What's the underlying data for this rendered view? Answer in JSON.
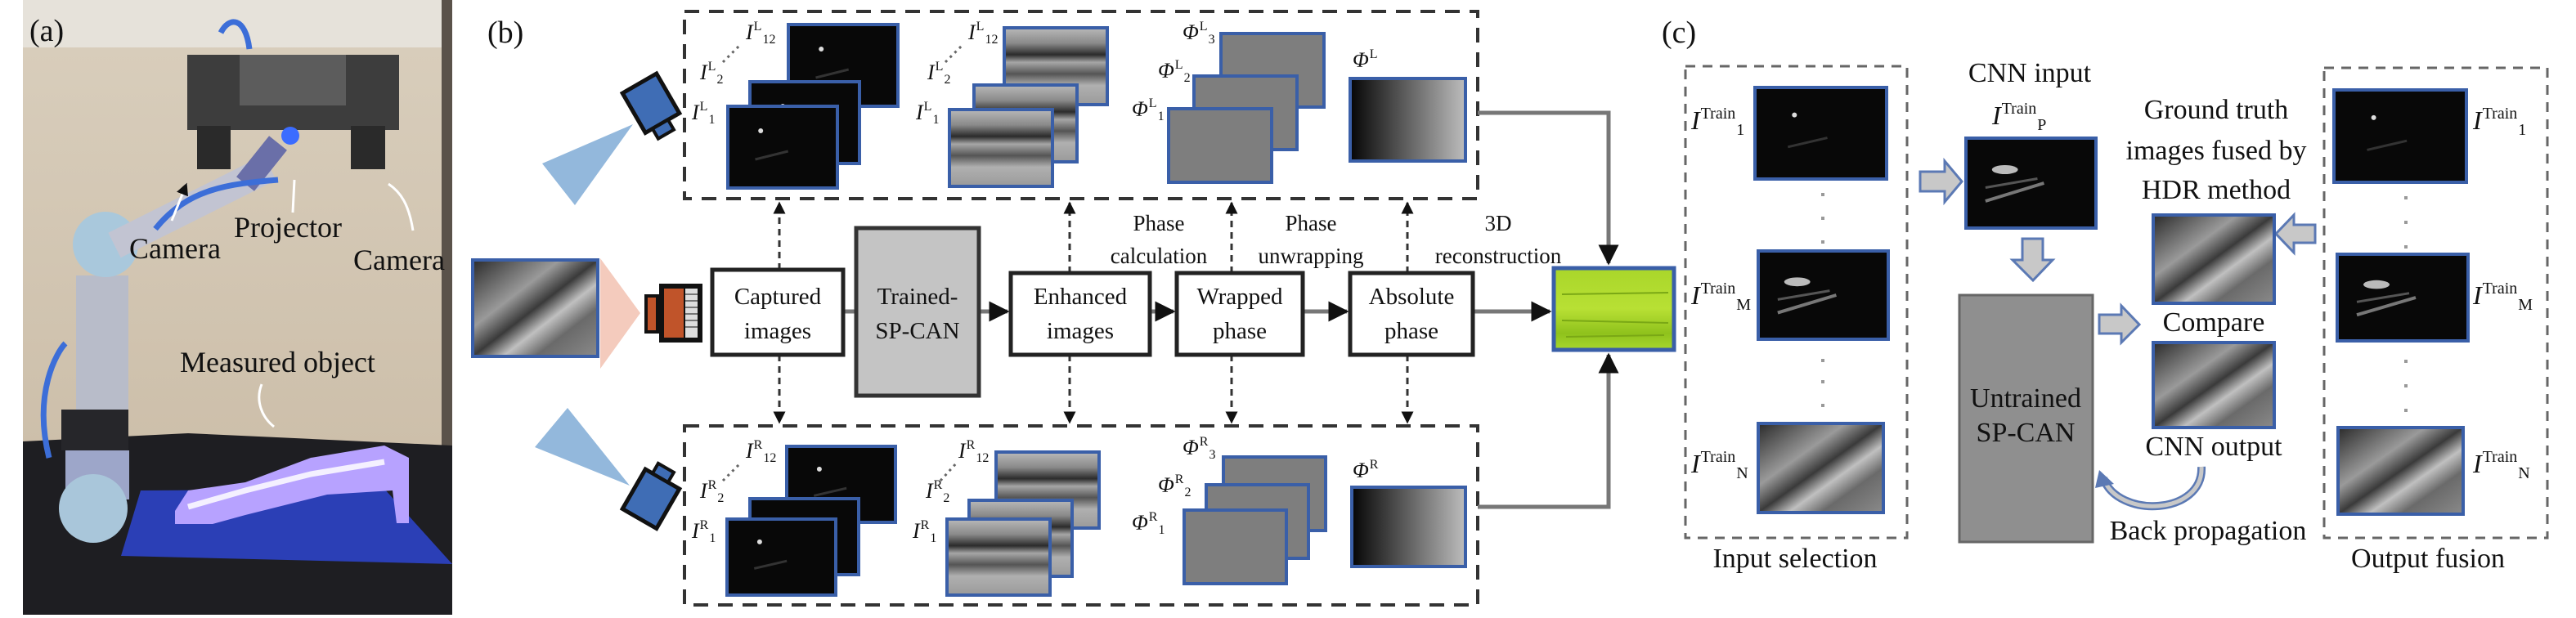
{
  "panel_a": {
    "label": "(a)",
    "annotations": {
      "camera_left": "Camera",
      "projector": "Projector",
      "camera_right": "Camera",
      "measured_object": "Measured object"
    }
  },
  "panel_b": {
    "label": "(b)",
    "blocks": {
      "captured": [
        "Captured",
        "images"
      ],
      "trained": [
        "Trained-",
        "SP-CAN"
      ],
      "enhanced": [
        "Enhanced",
        "images"
      ],
      "wrapped": [
        "Wrapped",
        "phase"
      ],
      "absolute": [
        "Absolute",
        "phase"
      ]
    },
    "steps": {
      "phase_calculation": [
        "Phase",
        "calculation"
      ],
      "phase_unwrapping": [
        "Phase",
        "unwrapping"
      ],
      "reconstruction": [
        "3D",
        "reconstruction"
      ]
    },
    "left_camera": {
      "captured": [
        {
          "base": "I",
          "sub": "12",
          "sup": "L"
        },
        {
          "base": "I",
          "sub": "2",
          "sup": "L"
        },
        {
          "base": "I",
          "sub": "1",
          "sup": "L"
        }
      ],
      "enhanced": [
        {
          "base": "I",
          "sub": "12",
          "sup": "L"
        },
        {
          "base": "I",
          "sub": "2",
          "sup": "L"
        },
        {
          "base": "I",
          "sub": "1",
          "sup": "L"
        }
      ],
      "wrapped": [
        {
          "base": "Φ",
          "sub": "3",
          "sup": "L"
        },
        {
          "base": "Φ",
          "sub": "2",
          "sup": "L"
        },
        {
          "base": "Φ",
          "sub": "1",
          "sup": "L"
        }
      ],
      "absolute": {
        "base": "Φ",
        "sub": "",
        "sup": "L"
      }
    },
    "right_camera": {
      "captured": [
        {
          "base": "I",
          "sub": "12",
          "sup": "R"
        },
        {
          "base": "I",
          "sub": "2",
          "sup": "R"
        },
        {
          "base": "I",
          "sub": "1",
          "sup": "R"
        }
      ],
      "enhanced": [
        {
          "base": "I",
          "sub": "12",
          "sup": "R"
        },
        {
          "base": "I",
          "sub": "2",
          "sup": "R"
        },
        {
          "base": "I",
          "sub": "1",
          "sup": "R"
        }
      ],
      "wrapped": [
        {
          "base": "Φ",
          "sub": "3",
          "sup": "R"
        },
        {
          "base": "Φ",
          "sub": "2",
          "sup": "R"
        },
        {
          "base": "Φ",
          "sub": "1",
          "sup": "R"
        }
      ],
      "absolute": {
        "base": "Φ",
        "sub": "",
        "sup": "R"
      }
    },
    "colors": {
      "camera": "#3f6db5",
      "projector": "#c0542a",
      "frame": "#3a5fa8",
      "result": "#9bd321",
      "spcan": "#c4c4c4"
    }
  },
  "panel_c": {
    "label": "(c)",
    "input_selection": {
      "title": "Input selection",
      "labels": [
        {
          "base": "I",
          "sub": "1",
          "sup": "Train"
        },
        {
          "base": "I",
          "sub": "M",
          "sup": "Train"
        },
        {
          "base": "I",
          "sub": "N",
          "sup": "Train"
        }
      ]
    },
    "cnn_input": {
      "title": "CNN input",
      "label": {
        "base": "I",
        "sub": "P",
        "sup": "Train"
      }
    },
    "network": [
      "Untrained",
      "SP-CAN"
    ],
    "ground_truth": [
      "Ground truth",
      "images fused by",
      "HDR method"
    ],
    "compare": "Compare",
    "cnn_output": "CNN output",
    "back_propagation": "Back propagation",
    "output_fusion": {
      "title": "Output fusion",
      "labels": [
        {
          "base": "I",
          "sub": "1",
          "sup": "Train"
        },
        {
          "base": "I",
          "sub": "M",
          "sup": "Train"
        },
        {
          "base": "I",
          "sub": "N",
          "sup": "Train"
        }
      ]
    },
    "colors": {
      "network": "#8f8f8f",
      "arrow_fill": "#c8c8c8",
      "arrow_edge": "#5b79b4"
    }
  }
}
